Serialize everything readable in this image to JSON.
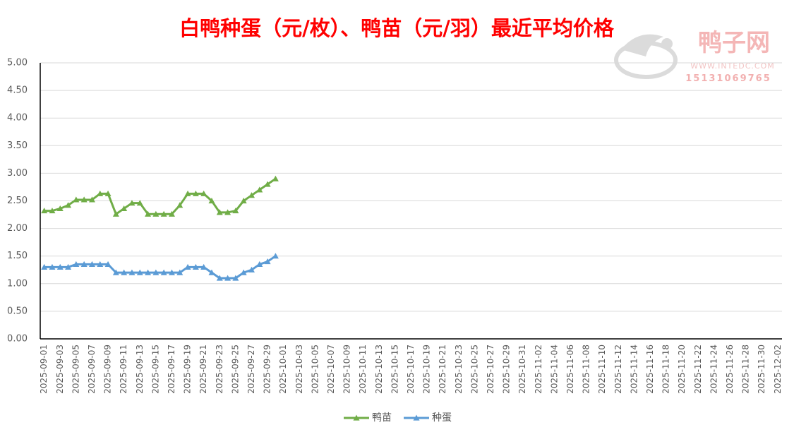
{
  "chart_data": {
    "type": "line",
    "title": "白鸭种蛋（元/枚）、鸭苗（元/羽）最近平均价格",
    "watermark": {
      "name": "鸭子网",
      "url": "WWW.INTEDC.COM",
      "phone": "15131069765"
    },
    "categories": [
      "2025-09-01",
      null,
      "2025-09-03",
      null,
      "2025-09-05",
      null,
      "2025-09-07",
      null,
      "2025-09-09",
      null,
      "2025-09-11",
      null,
      "2025-09-13",
      null,
      "2025-09-15",
      null,
      "2025-09-17",
      null,
      "2025-09-19",
      null,
      "2025-09-21",
      null,
      "2025-09-23",
      null,
      "2025-09-25",
      null,
      "2025-09-27",
      null,
      "2025-09-29",
      null,
      "2025-10-01",
      null,
      "2025-10-03",
      null,
      "2025-10-05",
      null,
      "2025-10-07",
      null,
      "2025-10-09",
      null,
      "2025-10-11",
      null,
      "2025-10-13",
      null,
      "2025-10-15",
      null,
      "2025-10-17",
      null,
      "2025-10-19",
      null,
      "2025-10-21",
      null,
      "2025-10-23",
      null,
      "2025-10-25",
      null,
      "2025-10-27",
      null,
      "2025-10-29",
      null,
      "2025-10-31",
      null,
      "2025-11-02",
      null,
      "2025-11-04",
      null,
      "2025-11-06",
      null,
      "2025-11-08",
      null,
      "2025-11-10",
      null,
      "2025-11-12",
      null,
      "2025-11-14",
      null,
      "2025-11-16",
      null,
      "2025-11-18",
      null,
      "2025-11-20",
      null,
      "2025-11-22",
      null,
      "2025-11-24",
      null,
      "2025-11-26",
      null,
      "2025-11-28",
      null,
      "2025-11-30",
      null,
      "2025-12-02"
    ],
    "series": [
      {
        "name": "鸭苗",
        "color": "#70ad47",
        "values": [
          2.32,
          2.32,
          2.36,
          2.42,
          2.52,
          2.52,
          2.52,
          2.63,
          2.63,
          2.26,
          2.36,
          2.46,
          2.46,
          2.26,
          2.26,
          2.26,
          2.26,
          2.42,
          2.63,
          2.63,
          2.63,
          2.5,
          2.29,
          2.29,
          2.32,
          2.5,
          2.6,
          2.7,
          2.8,
          2.9,
          null,
          null,
          null,
          null,
          null,
          null,
          null,
          null,
          null,
          null,
          null,
          null,
          null,
          null,
          null,
          null,
          null,
          null,
          null,
          null,
          null,
          null,
          null,
          null,
          null,
          null,
          null,
          null,
          null,
          null,
          null,
          null,
          null,
          null,
          null,
          null,
          null,
          null,
          null,
          null,
          null,
          null,
          null,
          null,
          null,
          null,
          null,
          null,
          null,
          null,
          null,
          null,
          null,
          null,
          null,
          null,
          null,
          null,
          null,
          null,
          null,
          null,
          null
        ]
      },
      {
        "name": "种蛋",
        "color": "#5b9bd5",
        "values": [
          1.3,
          1.3,
          1.3,
          1.3,
          1.35,
          1.35,
          1.35,
          1.35,
          1.35,
          1.2,
          1.2,
          1.2,
          1.2,
          1.2,
          1.2,
          1.2,
          1.2,
          1.2,
          1.3,
          1.3,
          1.3,
          1.2,
          1.1,
          1.1,
          1.1,
          1.2,
          1.25,
          1.35,
          1.4,
          1.5,
          null,
          null,
          null,
          null,
          null,
          null,
          null,
          null,
          null,
          null,
          null,
          null,
          null,
          null,
          null,
          null,
          null,
          null,
          null,
          null,
          null,
          null,
          null,
          null,
          null,
          null,
          null,
          null,
          null,
          null,
          null,
          null,
          null,
          null,
          null,
          null,
          null,
          null,
          null,
          null,
          null,
          null,
          null,
          null,
          null,
          null,
          null,
          null,
          null,
          null,
          null,
          null,
          null,
          null,
          null,
          null,
          null,
          null,
          null,
          null,
          null,
          null,
          null
        ]
      }
    ],
    "ylim": [
      0,
      5
    ],
    "yticks": [
      {
        "value": 0,
        "label": "0.00"
      },
      {
        "value": 0.5,
        "label": "0.50"
      },
      {
        "value": 1,
        "label": "1.00"
      },
      {
        "value": 1.5,
        "label": "1.50"
      },
      {
        "value": 2,
        "label": "2.00"
      },
      {
        "value": 2.5,
        "label": "2.50"
      },
      {
        "value": 3,
        "label": "3.00"
      },
      {
        "value": 3.5,
        "label": "3.50"
      },
      {
        "value": 4,
        "label": "4.00"
      },
      {
        "value": 4.5,
        "label": "4.50"
      },
      {
        "value": 5,
        "label": "5.00"
      }
    ],
    "grid": true,
    "legend": "bottom"
  }
}
